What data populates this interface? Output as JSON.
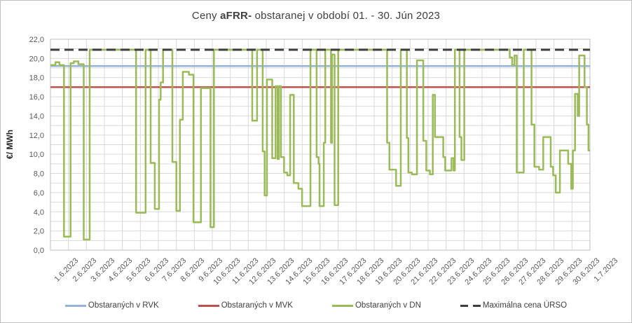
{
  "title": {
    "prefix": "Ceny ",
    "bold": "aFRR-",
    "suffix": " obstaranej v období 01. - 30. Jún 2023"
  },
  "y_axis": {
    "title": "€/ MWh",
    "min": 0,
    "max": 22,
    "label_step": 2,
    "grid_step": 1,
    "tick_labels": [
      "0,0",
      "2,0",
      "4,0",
      "6,0",
      "8,0",
      "10,0",
      "12,0",
      "14,0",
      "16,0",
      "18,0",
      "20,0",
      "22,0"
    ]
  },
  "x_axis": {
    "labels": [
      "1.6.2023",
      "2.6.2023",
      "3.6.2023",
      "4.6.2023",
      "5.6.2023",
      "6.6.2023",
      "7.6.2023",
      "8.6.2023",
      "9.6.2023",
      "10.6.2023",
      "11.6.2023",
      "12.6.2023",
      "13.6.2023",
      "14.6.2023",
      "15.6.2023",
      "16.6.2023",
      "17.6.2023",
      "18.6.2023",
      "19.6.2023",
      "20.6.2023",
      "21.6.2023",
      "22.6.2023",
      "23.6.2023",
      "24.6.2023",
      "25.6.2023",
      "26.6.2023",
      "27.6.2023",
      "28.6.2023",
      "29.6.2023",
      "30.6.2023",
      "1.7.2023"
    ]
  },
  "legend": [
    {
      "label": "Obstaraných v RVK",
      "color": "#95B3D7",
      "style": "solid"
    },
    {
      "label": "Obstaraných v MVK",
      "color": "#C0504D",
      "style": "solid"
    },
    {
      "label": "Obstaraných v DN",
      "color": "#9BBB59",
      "style": "solid"
    },
    {
      "label": "Maximálna cena ÚRSO",
      "color": "#3F3F3F",
      "style": "dashed"
    }
  ],
  "colors": {
    "grid": "#D9D9D9",
    "plot_border": "#BFBFBF",
    "tick_text": "#595959",
    "rvk": "#95B3D7",
    "mvk": "#C0504D",
    "dn": "#9BBB59",
    "urso": "#3F3F3F"
  },
  "chart_data": {
    "type": "line",
    "title": "Ceny aFRR- obstaranej v období 01. - 30. Jún 2023",
    "xlabel": "",
    "ylabel": "€/ MWh",
    "ylim": [
      0,
      22
    ],
    "x_range_days": [
      0,
      30
    ],
    "grid": true,
    "legend_position": "bottom",
    "x_tick_labels": [
      "1.6.2023",
      "2.6.2023",
      "3.6.2023",
      "4.6.2023",
      "5.6.2023",
      "6.6.2023",
      "7.6.2023",
      "8.6.2023",
      "9.6.2023",
      "10.6.2023",
      "11.6.2023",
      "12.6.2023",
      "13.6.2023",
      "14.6.2023",
      "15.6.2023",
      "16.6.2023",
      "17.6.2023",
      "18.6.2023",
      "19.6.2023",
      "20.6.2023",
      "21.6.2023",
      "22.6.2023",
      "23.6.2023",
      "24.6.2023",
      "25.6.2023",
      "26.6.2023",
      "27.6.2023",
      "28.6.2023",
      "29.6.2023",
      "30.6.2023",
      "1.7.2023"
    ],
    "series": [
      {
        "name": "Obstaraných v RVK",
        "kind": "constant",
        "value": 19.2,
        "color": "#95B3D7"
      },
      {
        "name": "Obstaraných v MVK",
        "kind": "constant",
        "value": 17.0,
        "color": "#C0504D"
      },
      {
        "name": "Maximálna cena ÚRSO",
        "kind": "constant",
        "dashed": true,
        "value": 20.9,
        "color": "#3F3F3F"
      },
      {
        "name": "Obstaraných v DN",
        "kind": "step",
        "color": "#9BBB59",
        "points": [
          [
            0.0,
            19.3
          ],
          [
            0.28,
            19.6
          ],
          [
            0.5,
            19.3
          ],
          [
            0.75,
            1.4
          ],
          [
            1.12,
            19.5
          ],
          [
            1.3,
            19.7
          ],
          [
            1.55,
            19.4
          ],
          [
            1.85,
            1.1
          ],
          [
            2.18,
            20.9
          ],
          [
            4.76,
            3.9
          ],
          [
            5.29,
            20.9
          ],
          [
            5.57,
            9.1
          ],
          [
            5.8,
            4.3
          ],
          [
            6.04,
            15.7
          ],
          [
            6.13,
            17.5
          ],
          [
            6.26,
            20.9
          ],
          [
            6.78,
            9.2
          ],
          [
            7.0,
            4.1
          ],
          [
            7.2,
            13.6
          ],
          [
            7.36,
            18.6
          ],
          [
            7.7,
            18.3
          ],
          [
            7.95,
            2.9
          ],
          [
            8.37,
            16.9
          ],
          [
            8.9,
            2.4
          ],
          [
            9.09,
            20.9
          ],
          [
            11.22,
            13.5
          ],
          [
            11.49,
            20.9
          ],
          [
            11.8,
            10.3
          ],
          [
            11.91,
            5.7
          ],
          [
            12.04,
            17.8
          ],
          [
            12.33,
            9.6
          ],
          [
            12.52,
            17.1
          ],
          [
            12.63,
            9.5
          ],
          [
            12.7,
            17.1
          ],
          [
            12.82,
            9.7
          ],
          [
            12.99,
            8.1
          ],
          [
            13.17,
            7.8
          ],
          [
            13.33,
            16.2
          ],
          [
            13.53,
            7.0
          ],
          [
            13.79,
            6.4
          ],
          [
            13.99,
            4.6
          ],
          [
            14.46,
            20.9
          ],
          [
            14.8,
            9.7
          ],
          [
            14.91,
            9.0
          ],
          [
            14.96,
            4.6
          ],
          [
            15.2,
            11.2
          ],
          [
            15.28,
            20.9
          ],
          [
            15.6,
            11.2
          ],
          [
            15.66,
            20.4
          ],
          [
            15.8,
            4.7
          ],
          [
            16.0,
            20.9
          ],
          [
            18.72,
            11.2
          ],
          [
            18.85,
            8.4
          ],
          [
            19.22,
            6.7
          ],
          [
            19.48,
            20.9
          ],
          [
            19.82,
            11.7
          ],
          [
            19.9,
            8.1
          ],
          [
            20.1,
            7.9
          ],
          [
            20.38,
            19.8
          ],
          [
            20.73,
            11.4
          ],
          [
            20.9,
            8.3
          ],
          [
            21.1,
            7.9
          ],
          [
            21.26,
            16.2
          ],
          [
            21.38,
            11.8
          ],
          [
            21.84,
            9.7
          ],
          [
            21.95,
            8.3
          ],
          [
            22.3,
            9.6
          ],
          [
            22.42,
            8.3
          ],
          [
            22.49,
            20.9
          ],
          [
            22.75,
            11.8
          ],
          [
            22.85,
            9.4
          ],
          [
            23.01,
            20.9
          ],
          [
            25.54,
            20.1
          ],
          [
            25.67,
            19.3
          ],
          [
            25.8,
            20.3
          ],
          [
            25.93,
            8.1
          ],
          [
            26.32,
            20.9
          ],
          [
            26.75,
            13.1
          ],
          [
            26.91,
            8.7
          ],
          [
            27.17,
            8.4
          ],
          [
            27.4,
            11.8
          ],
          [
            27.82,
            8.7
          ],
          [
            27.95,
            7.8
          ],
          [
            28.1,
            6.0
          ],
          [
            28.33,
            10.4
          ],
          [
            28.79,
            9.0
          ],
          [
            28.96,
            6.4
          ],
          [
            29.05,
            10.4
          ],
          [
            29.17,
            16.3
          ],
          [
            29.32,
            14.0
          ],
          [
            29.4,
            20.3
          ],
          [
            29.7,
            17.0
          ],
          [
            29.83,
            13.1
          ],
          [
            29.92,
            10.4
          ],
          [
            30.0,
            10.4
          ]
        ]
      }
    ]
  }
}
